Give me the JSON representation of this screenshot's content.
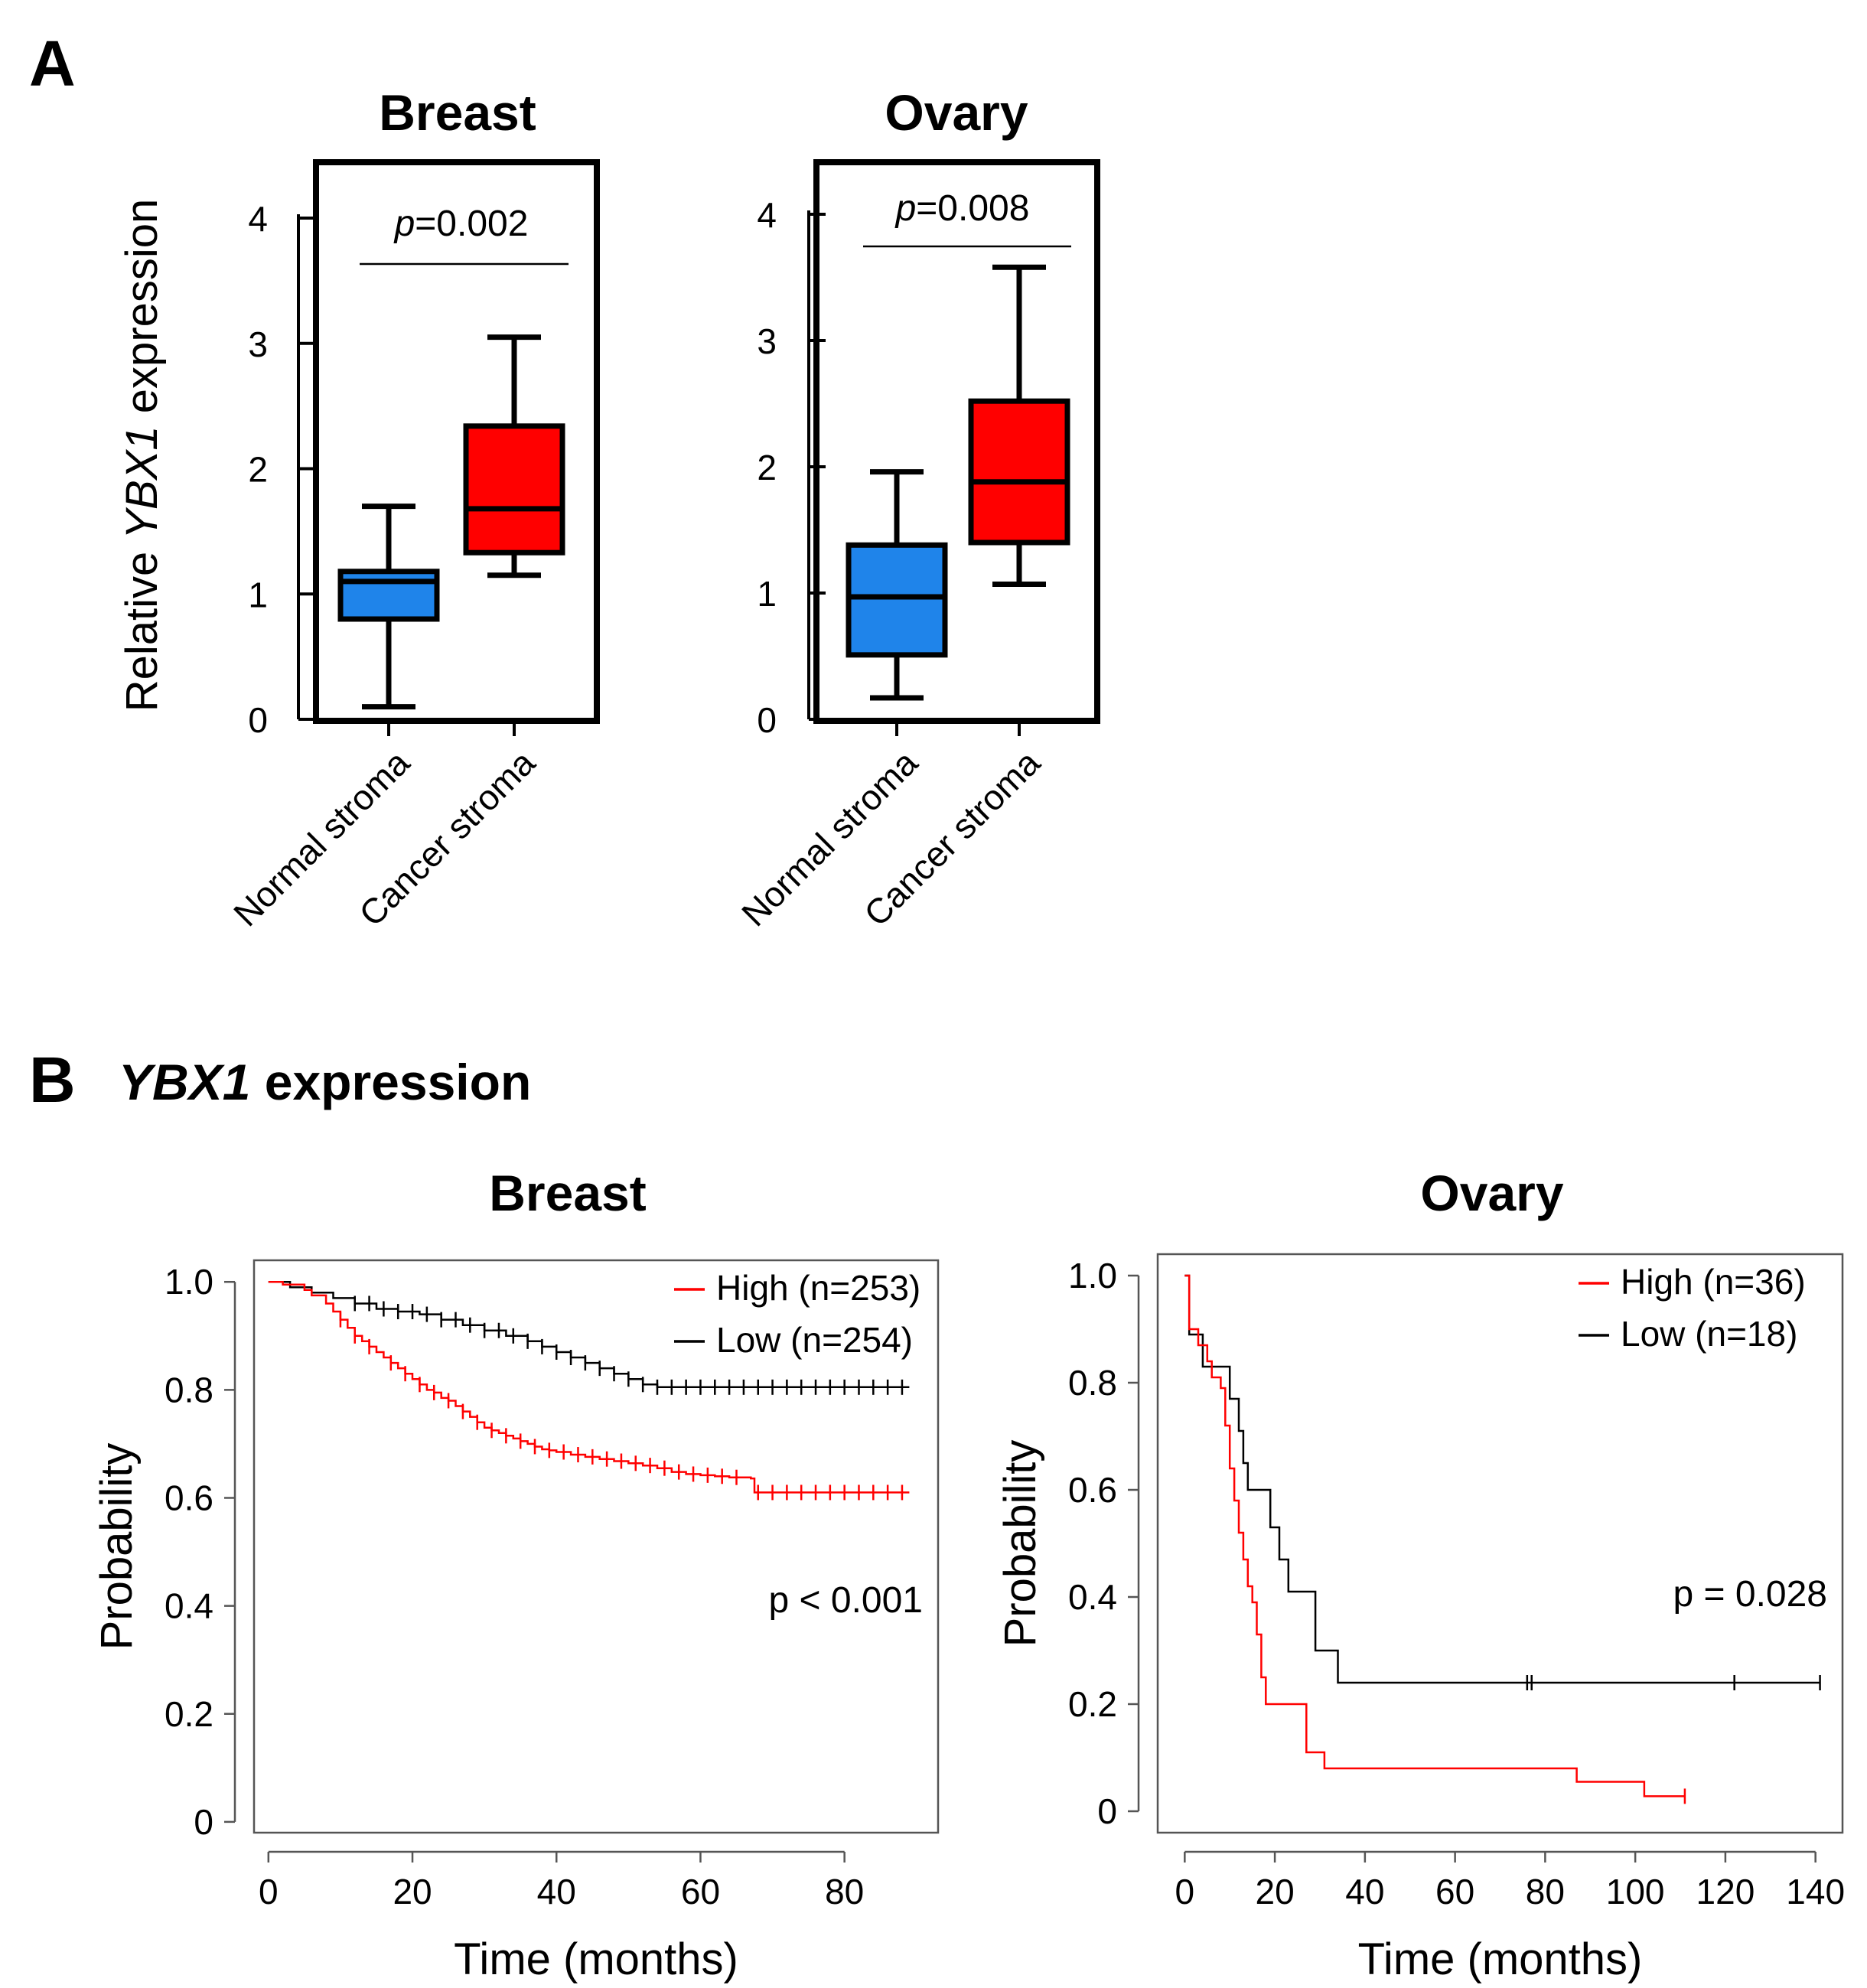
{
  "panel_a": {
    "letter": "A",
    "ylabel_prefix": "Relative ",
    "ylabel_gene": "YBX1",
    "ylabel_suffix": " expression"
  },
  "panel_b": {
    "letter": "B",
    "title_gene": "YBX1",
    "title_suffix": " expression"
  },
  "colors": {
    "normal": "#1f84ea",
    "cancer": "#ff0000",
    "high": "#ff0000",
    "low": "#000000"
  },
  "chart_data": [
    {
      "type": "box",
      "id": "box-breast",
      "title": "Breast",
      "ylim": [
        0,
        4
      ],
      "yticks": [
        "0",
        "1",
        "2",
        "3",
        "4"
      ],
      "categories": [
        "Normal stroma",
        "Cancer stroma"
      ],
      "boxes": [
        {
          "name": "Normal stroma",
          "min": 0.1,
          "q1": 0.8,
          "median": 1.1,
          "q3": 1.18,
          "max": 1.7
        },
        {
          "name": "Cancer stroma",
          "min": 1.15,
          "q1": 1.33,
          "median": 1.68,
          "q3": 2.34,
          "max": 3.05
        }
      ],
      "p_label": "p",
      "p_value": "=0.002"
    },
    {
      "type": "box",
      "id": "box-ovary",
      "title": "Ovary",
      "ylim": [
        0,
        4
      ],
      "yticks": [
        "0",
        "1",
        "2",
        "3",
        "4"
      ],
      "categories": [
        "Normal stroma",
        "Cancer stroma"
      ],
      "boxes": [
        {
          "name": "Normal stroma",
          "min": 0.17,
          "q1": 0.51,
          "median": 0.97,
          "q3": 1.38,
          "max": 1.96
        },
        {
          "name": "Cancer stroma",
          "min": 1.07,
          "q1": 1.4,
          "median": 1.88,
          "q3": 2.52,
          "max": 3.58
        }
      ],
      "p_label": "p",
      "p_value": "=0.008"
    },
    {
      "type": "line",
      "id": "km-breast",
      "title": "Breast",
      "xlabel": "Time (months)",
      "ylabel": "Probability",
      "xlim": [
        -2,
        93
      ],
      "ylim": [
        -0.02,
        1.04
      ],
      "xticks": [
        0,
        20,
        40,
        60,
        80
      ],
      "xtick_labels": [
        "0",
        "20",
        "40",
        "60",
        "80"
      ],
      "yticks": [
        0,
        0.2,
        0.4,
        0.6,
        0.8,
        1.0
      ],
      "ytick_labels": [
        "0",
        "0.2",
        "0.4",
        "0.6",
        "0.8",
        "1.0"
      ],
      "p_text": "p < 0.001",
      "series": [
        {
          "name": "High (n=253)",
          "group": "high",
          "points": [
            [
              0,
              1.0
            ],
            [
              2,
              0.995
            ],
            [
              5,
              0.985
            ],
            [
              6,
              0.975
            ],
            [
              8,
              0.96
            ],
            [
              9,
              0.945
            ],
            [
              10,
              0.93
            ],
            [
              11,
              0.915
            ],
            [
              12,
              0.9
            ],
            [
              13,
              0.89
            ],
            [
              14,
              0.88
            ],
            [
              15,
              0.87
            ],
            [
              16,
              0.86
            ],
            [
              17,
              0.85
            ],
            [
              18,
              0.84
            ],
            [
              19,
              0.83
            ],
            [
              20,
              0.82
            ],
            [
              21,
              0.81
            ],
            [
              22,
              0.8
            ],
            [
              23,
              0.795
            ],
            [
              24,
              0.785
            ],
            [
              25,
              0.78
            ],
            [
              26,
              0.77
            ],
            [
              27,
              0.76
            ],
            [
              28,
              0.75
            ],
            [
              29,
              0.74
            ],
            [
              30,
              0.73
            ],
            [
              31,
              0.725
            ],
            [
              32,
              0.72
            ],
            [
              33,
              0.715
            ],
            [
              34,
              0.71
            ],
            [
              35,
              0.705
            ],
            [
              36,
              0.7
            ],
            [
              37,
              0.695
            ],
            [
              38,
              0.69
            ],
            [
              39,
              0.688
            ],
            [
              40,
              0.685
            ],
            [
              42,
              0.68
            ],
            [
              44,
              0.676
            ],
            [
              46,
              0.672
            ],
            [
              48,
              0.668
            ],
            [
              50,
              0.664
            ],
            [
              52,
              0.66
            ],
            [
              54,
              0.655
            ],
            [
              56,
              0.648
            ],
            [
              58,
              0.644
            ],
            [
              60,
              0.642
            ],
            [
              62,
              0.64
            ],
            [
              64,
              0.638
            ],
            [
              67,
              0.636
            ],
            [
              67.5,
              0.61
            ],
            [
              89,
              0.61
            ]
          ],
          "censor_x": [
            10,
            12,
            14,
            17,
            19,
            21,
            23,
            25,
            27,
            29,
            31,
            33,
            35,
            37,
            39,
            41,
            43,
            45,
            47,
            49,
            51,
            53,
            55,
            57,
            59,
            61,
            63,
            65,
            68,
            70,
            72,
            74,
            76,
            78,
            80,
            82,
            84,
            86,
            88
          ]
        },
        {
          "name": "Low (n=254)",
          "group": "low",
          "points": [
            [
              0,
              1.0
            ],
            [
              3,
              0.99
            ],
            [
              6,
              0.98
            ],
            [
              9,
              0.97
            ],
            [
              12,
              0.96
            ],
            [
              15,
              0.95
            ],
            [
              18,
              0.945
            ],
            [
              21,
              0.94
            ],
            [
              24,
              0.93
            ],
            [
              27,
              0.92
            ],
            [
              30,
              0.91
            ],
            [
              33,
              0.9
            ],
            [
              36,
              0.89
            ],
            [
              38,
              0.88
            ],
            [
              40,
              0.87
            ],
            [
              42,
              0.86
            ],
            [
              44,
              0.85
            ],
            [
              46,
              0.84
            ],
            [
              48,
              0.83
            ],
            [
              50,
              0.82
            ],
            [
              52,
              0.81
            ],
            [
              54,
              0.805
            ],
            [
              89,
              0.805
            ]
          ],
          "censor_x": [
            12,
            14,
            16,
            18,
            20,
            22,
            24,
            26,
            28,
            30,
            32,
            34,
            36,
            38,
            40,
            42,
            44,
            46,
            48,
            50,
            52,
            54,
            56,
            58,
            60,
            62,
            64,
            66,
            68,
            70,
            72,
            74,
            76,
            78,
            80,
            82,
            84,
            86,
            88
          ]
        }
      ]
    },
    {
      "type": "line",
      "id": "km-ovary",
      "title": "Ovary",
      "xlabel": "Time (months)",
      "ylabel": "Probability",
      "xlim": [
        -6,
        146
      ],
      "ylim": [
        -0.04,
        1.04
      ],
      "xticks": [
        0,
        20,
        40,
        60,
        80,
        100,
        120,
        140
      ],
      "xtick_labels": [
        "0",
        "20",
        "40",
        "60",
        "80",
        "100",
        "120",
        "140"
      ],
      "yticks": [
        0,
        0.2,
        0.4,
        0.6,
        0.8,
        1.0
      ],
      "ytick_labels": [
        "0",
        "0.2",
        "0.4",
        "0.6",
        "0.8",
        "1.0"
      ],
      "p_text": "p = 0.028",
      "series": [
        {
          "name": "High (n=36)",
          "group": "high",
          "points": [
            [
              0,
              1.0
            ],
            [
              1,
              0.9
            ],
            [
              3,
              0.87
            ],
            [
              5,
              0.84
            ],
            [
              6,
              0.81
            ],
            [
              8,
              0.79
            ],
            [
              9,
              0.72
            ],
            [
              10,
              0.64
            ],
            [
              11,
              0.58
            ],
            [
              12,
              0.52
            ],
            [
              13,
              0.47
            ],
            [
              14,
              0.42
            ],
            [
              15,
              0.39
            ],
            [
              16,
              0.33
            ],
            [
              17,
              0.25
            ],
            [
              18,
              0.2
            ],
            [
              19,
              0.2
            ],
            [
              26,
              0.2
            ],
            [
              27,
              0.11
            ],
            [
              30,
              0.11
            ],
            [
              31,
              0.08
            ],
            [
              86,
              0.08
            ],
            [
              87,
              0.055
            ],
            [
              101,
              0.055
            ],
            [
              102,
              0.028
            ],
            [
              111,
              0.028
            ]
          ],
          "censor_x": [
            111
          ]
        },
        {
          "name": "Low (n=18)",
          "group": "low",
          "points": [
            [
              0,
              1.0
            ],
            [
              1,
              0.89
            ],
            [
              3,
              0.89
            ],
            [
              4,
              0.83
            ],
            [
              9,
              0.83
            ],
            [
              10,
              0.77
            ],
            [
              12,
              0.71
            ],
            [
              13,
              0.65
            ],
            [
              14,
              0.6
            ],
            [
              18,
              0.6
            ],
            [
              19,
              0.53
            ],
            [
              21,
              0.47
            ],
            [
              23,
              0.41
            ],
            [
              28,
              0.41
            ],
            [
              29,
              0.3
            ],
            [
              34,
              0.24
            ],
            [
              141,
              0.24
            ]
          ],
          "censor_x": [
            76,
            77,
            122,
            141
          ]
        }
      ]
    }
  ]
}
